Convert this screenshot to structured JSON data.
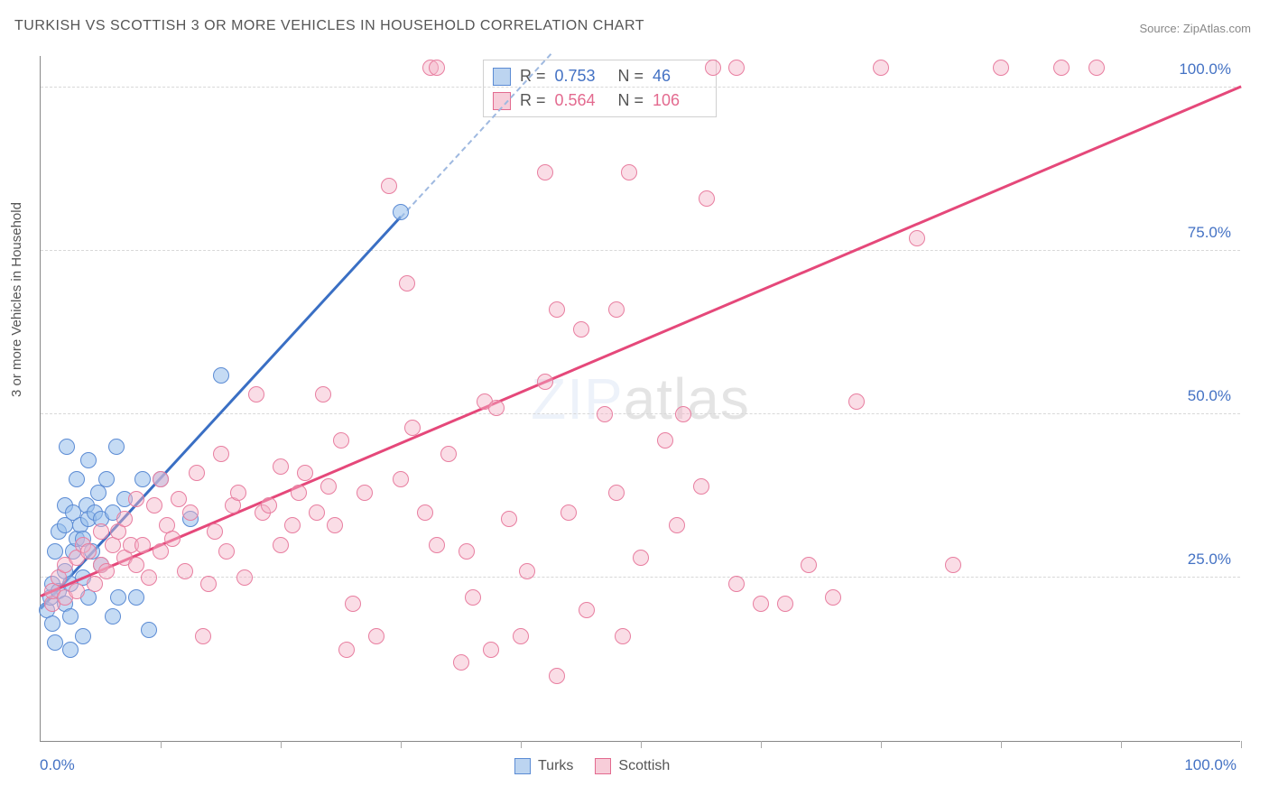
{
  "title": "TURKISH VS SCOTTISH 3 OR MORE VEHICLES IN HOUSEHOLD CORRELATION CHART",
  "source_label": "Source: ZipAtlas.com",
  "y_axis_title": "3 or more Vehicles in Household",
  "watermark_prefix": "ZIP",
  "watermark_suffix": "atlas",
  "axes": {
    "x_origin": "0.0%",
    "x_max": "100.0%",
    "xlim": [
      0,
      100
    ],
    "ylim": [
      0,
      105
    ],
    "y_gridlines": [
      25,
      50,
      75,
      100
    ],
    "y_labels": [
      "25.0%",
      "50.0%",
      "75.0%",
      "100.0%"
    ],
    "x_ticks": [
      10,
      20,
      30,
      40,
      50,
      60,
      70,
      80,
      90,
      100
    ],
    "grid_color": "#d8d8d8"
  },
  "legend_top": {
    "series": [
      {
        "swatch_fill": "#bcd4f0",
        "swatch_border": "#5b8bd4",
        "value_color": "#4472c4",
        "r_label": "R =",
        "r_value": "0.753",
        "n_label": "N =",
        "n_value": "46"
      },
      {
        "swatch_fill": "#f7cdd9",
        "swatch_border": "#e36a8f",
        "value_color": "#e36a8f",
        "r_label": "R =",
        "r_value": "0.564",
        "n_label": "N =",
        "n_value": "106"
      }
    ]
  },
  "legend_bottom": {
    "items": [
      {
        "swatch_fill": "#bcd4f0",
        "swatch_border": "#5b8bd4",
        "label": "Turks"
      },
      {
        "swatch_fill": "#f7cdd9",
        "swatch_border": "#e36a8f",
        "label": "Scottish"
      }
    ]
  },
  "series": [
    {
      "name": "turks",
      "marker_fill": "rgba(150,190,235,0.55)",
      "marker_border": "#5b8bd4",
      "marker_radius": 9,
      "trend_color": "#3a6fc4",
      "trend_width": 3,
      "trend_dashed_color": "#9fb9e0",
      "trend": {
        "x1": 0,
        "y1": 20,
        "x2": 30,
        "y2": 80,
        "dashed_to_x": 60,
        "dashed_to_y": 140
      },
      "points": [
        [
          0.5,
          20
        ],
        [
          0.8,
          22
        ],
        [
          1,
          24
        ],
        [
          1,
          18
        ],
        [
          1.2,
          15
        ],
        [
          1.5,
          23
        ],
        [
          1.2,
          29
        ],
        [
          1.5,
          32
        ],
        [
          2,
          21
        ],
        [
          2,
          26
        ],
        [
          2,
          33
        ],
        [
          2,
          36
        ],
        [
          2.2,
          45
        ],
        [
          2.5,
          14
        ],
        [
          2.5,
          19
        ],
        [
          2.5,
          24
        ],
        [
          2.7,
          29
        ],
        [
          2.7,
          35
        ],
        [
          3,
          31
        ],
        [
          3,
          40
        ],
        [
          3.3,
          33
        ],
        [
          3.5,
          16
        ],
        [
          3.5,
          25
        ],
        [
          3.5,
          31
        ],
        [
          3.8,
          36
        ],
        [
          4,
          22
        ],
        [
          4,
          34
        ],
        [
          4,
          43
        ],
        [
          4.3,
          29
        ],
        [
          4.5,
          35
        ],
        [
          4.8,
          38
        ],
        [
          5,
          27
        ],
        [
          5,
          34
        ],
        [
          5.5,
          40
        ],
        [
          6,
          19
        ],
        [
          6,
          35
        ],
        [
          6.3,
          45
        ],
        [
          6.5,
          22
        ],
        [
          7,
          37
        ],
        [
          8,
          22
        ],
        [
          8.5,
          40
        ],
        [
          9,
          17
        ],
        [
          10,
          40
        ],
        [
          12.5,
          34
        ],
        [
          15,
          56
        ],
        [
          30,
          81
        ]
      ]
    },
    {
      "name": "scottish",
      "marker_fill": "rgba(245,180,200,0.45)",
      "marker_border": "#e87ea0",
      "marker_radius": 9,
      "trend_color": "#e5487a",
      "trend_width": 3,
      "trend": {
        "x1": 0,
        "y1": 22,
        "x2": 100,
        "y2": 100
      },
      "points": [
        [
          1,
          21
        ],
        [
          1,
          23
        ],
        [
          1.5,
          25
        ],
        [
          2,
          22
        ],
        [
          2,
          27
        ],
        [
          3,
          23
        ],
        [
          3,
          28
        ],
        [
          3.5,
          30
        ],
        [
          4,
          29
        ],
        [
          4.5,
          24
        ],
        [
          5,
          27
        ],
        [
          5,
          32
        ],
        [
          5.5,
          26
        ],
        [
          6,
          30
        ],
        [
          6.5,
          32
        ],
        [
          7,
          28
        ],
        [
          7,
          34
        ],
        [
          7.5,
          30
        ],
        [
          8,
          27
        ],
        [
          8,
          37
        ],
        [
          8.5,
          30
        ],
        [
          9,
          25
        ],
        [
          9.5,
          36
        ],
        [
          10,
          29
        ],
        [
          10,
          40
        ],
        [
          10.5,
          33
        ],
        [
          11,
          31
        ],
        [
          11.5,
          37
        ],
        [
          12,
          26
        ],
        [
          12.5,
          35
        ],
        [
          13,
          41
        ],
        [
          13.5,
          16
        ],
        [
          14,
          24
        ],
        [
          14.5,
          32
        ],
        [
          15,
          44
        ],
        [
          15.5,
          29
        ],
        [
          16,
          36
        ],
        [
          16.5,
          38
        ],
        [
          17,
          25
        ],
        [
          18,
          53
        ],
        [
          18.5,
          35
        ],
        [
          19,
          36
        ],
        [
          20,
          30
        ],
        [
          20,
          42
        ],
        [
          21,
          33
        ],
        [
          21.5,
          38
        ],
        [
          22,
          41
        ],
        [
          23,
          35
        ],
        [
          23.5,
          53
        ],
        [
          24,
          39
        ],
        [
          24.5,
          33
        ],
        [
          25,
          46
        ],
        [
          25.5,
          14
        ],
        [
          26,
          21
        ],
        [
          27,
          38
        ],
        [
          28,
          16
        ],
        [
          29,
          85
        ],
        [
          30,
          40
        ],
        [
          30.5,
          70
        ],
        [
          31,
          48
        ],
        [
          32,
          35
        ],
        [
          32.5,
          103
        ],
        [
          33,
          30
        ],
        [
          33,
          103
        ],
        [
          34,
          44
        ],
        [
          35,
          12
        ],
        [
          35.5,
          29
        ],
        [
          36,
          22
        ],
        [
          37,
          52
        ],
        [
          37.5,
          14
        ],
        [
          38,
          51
        ],
        [
          39,
          34
        ],
        [
          40,
          16
        ],
        [
          40.5,
          26
        ],
        [
          42,
          55
        ],
        [
          42,
          87
        ],
        [
          43,
          10
        ],
        [
          43,
          66
        ],
        [
          44,
          35
        ],
        [
          45,
          63
        ],
        [
          45.5,
          20
        ],
        [
          47,
          50
        ],
        [
          48,
          38
        ],
        [
          48,
          66
        ],
        [
          48.5,
          16
        ],
        [
          49,
          87
        ],
        [
          50,
          28
        ],
        [
          52,
          46
        ],
        [
          53,
          33
        ],
        [
          53.5,
          50
        ],
        [
          55,
          39
        ],
        [
          55.5,
          83
        ],
        [
          56,
          103
        ],
        [
          58,
          24
        ],
        [
          58,
          103
        ],
        [
          60,
          21
        ],
        [
          62,
          21
        ],
        [
          64,
          27
        ],
        [
          66,
          22
        ],
        [
          68,
          52
        ],
        [
          70,
          103
        ],
        [
          73,
          77
        ],
        [
          76,
          27
        ],
        [
          80,
          103
        ],
        [
          85,
          103
        ],
        [
          88,
          103
        ]
      ]
    }
  ]
}
